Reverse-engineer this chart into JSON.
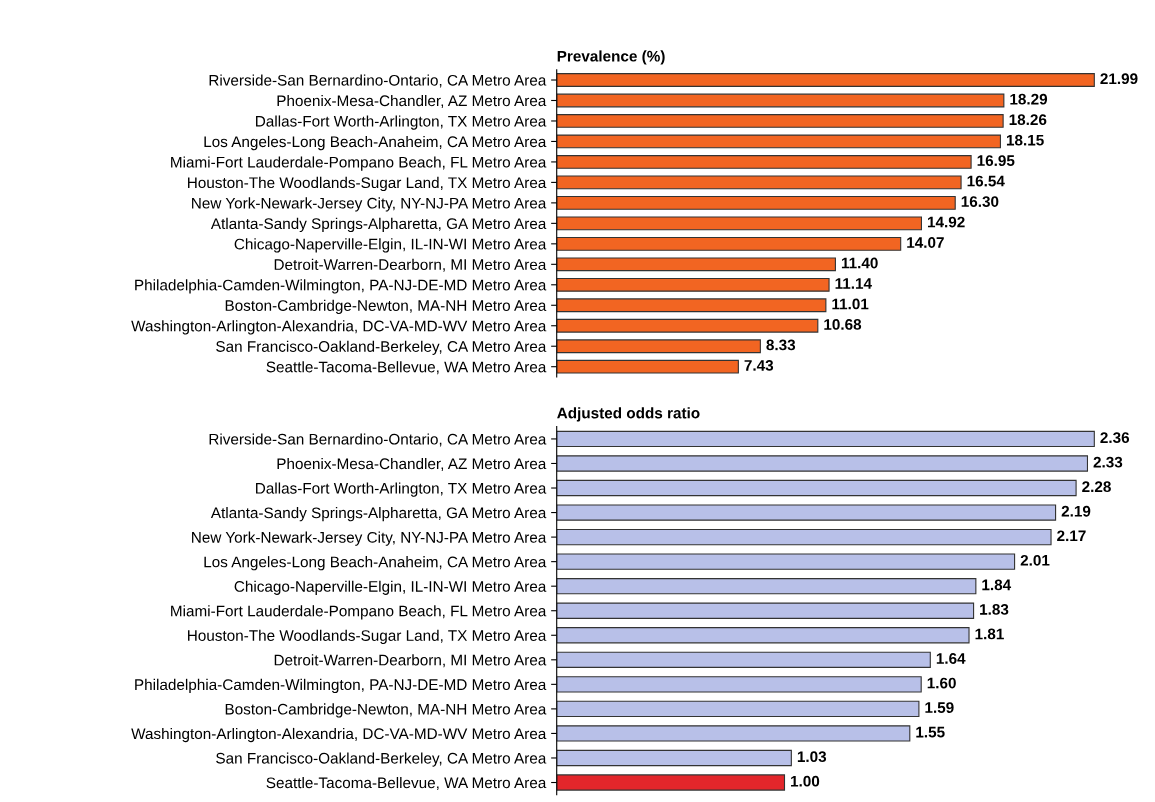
{
  "chart_data": [
    {
      "type": "bar",
      "orientation": "horizontal",
      "title": "Prevalence (%)",
      "categories": [
        "Riverside-San Bernardino-Ontario, CA Metro Area",
        "Phoenix-Mesa-Chandler, AZ Metro Area",
        "Dallas-Fort Worth-Arlington, TX Metro Area",
        "Los Angeles-Long Beach-Anaheim, CA Metro Area",
        "Miami-Fort Lauderdale-Pompano Beach, FL Metro Area",
        "Houston-The Woodlands-Sugar Land, TX Metro Area",
        "New York-Newark-Jersey City, NY-NJ-PA Metro Area",
        "Atlanta-Sandy Springs-Alpharetta, GA Metro Area",
        "Chicago-Naperville-Elgin, IL-IN-WI Metro Area",
        "Detroit-Warren-Dearborn, MI Metro Area",
        "Philadelphia-Camden-Wilmington, PA-NJ-DE-MD Metro Area",
        "Boston-Cambridge-Newton, MA-NH Metro Area",
        "Washington-Arlington-Alexandria, DC-VA-MD-WV Metro Area",
        "San Francisco-Oakland-Berkeley, CA Metro Area",
        "Seattle-Tacoma-Bellevue, WA Metro Area"
      ],
      "values": [
        21.99,
        18.29,
        18.26,
        18.15,
        16.95,
        16.54,
        16.3,
        14.92,
        14.07,
        11.4,
        11.14,
        11.01,
        10.68,
        8.33,
        7.43
      ],
      "value_labels": [
        "21.99",
        "18.29",
        "18.26",
        "18.15",
        "16.95",
        "16.54",
        "16.30",
        "14.92",
        "14.07",
        "11.40",
        "11.14",
        "11.01",
        "10.68",
        "8.33",
        "7.43"
      ],
      "color": "#f26522",
      "tick_labels": "y",
      "grid": false,
      "legend": false
    },
    {
      "type": "bar",
      "orientation": "horizontal",
      "title": "Adjusted odds ratio",
      "categories": [
        "Riverside-San Bernardino-Ontario, CA Metro Area",
        "Phoenix-Mesa-Chandler, AZ Metro Area",
        "Dallas-Fort Worth-Arlington, TX Metro Area",
        "Atlanta-Sandy Springs-Alpharetta, GA Metro Area",
        "New York-Newark-Jersey City, NY-NJ-PA Metro Area",
        "Los Angeles-Long Beach-Anaheim, CA Metro Area",
        "Chicago-Naperville-Elgin, IL-IN-WI Metro Area",
        "Miami-Fort Lauderdale-Pompano Beach, FL Metro Area",
        "Houston-The Woodlands-Sugar Land, TX Metro Area",
        "Detroit-Warren-Dearborn, MI Metro Area",
        "Philadelphia-Camden-Wilmington, PA-NJ-DE-MD Metro Area",
        "Boston-Cambridge-Newton, MA-NH Metro Area",
        "Washington-Arlington-Alexandria, DC-VA-MD-WV Metro Area",
        "San Francisco-Oakland-Berkeley, CA Metro Area",
        "Seattle-Tacoma-Bellevue, WA Metro Area"
      ],
      "values": [
        2.36,
        2.33,
        2.28,
        2.19,
        2.17,
        2.01,
        1.84,
        1.83,
        1.81,
        1.64,
        1.6,
        1.59,
        1.55,
        1.03,
        1.0
      ],
      "value_labels": [
        "2.36",
        "2.33",
        "2.28",
        "2.19",
        "2.17",
        "2.01",
        "1.84",
        "1.83",
        "1.81",
        "1.64",
        "1.60",
        "1.59",
        "1.55",
        "1.03",
        "1.00"
      ],
      "colors": [
        "#b8c0e8",
        "#b8c0e8",
        "#b8c0e8",
        "#b8c0e8",
        "#b8c0e8",
        "#b8c0e8",
        "#b8c0e8",
        "#b8c0e8",
        "#b8c0e8",
        "#b8c0e8",
        "#b8c0e8",
        "#b8c0e8",
        "#b8c0e8",
        "#b8c0e8",
        "#e3262b"
      ],
      "tick_labels": "y",
      "grid": false,
      "legend": false
    }
  ]
}
